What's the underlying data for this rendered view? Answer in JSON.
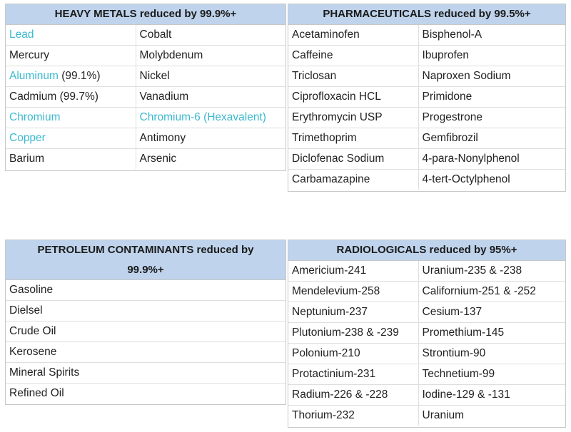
{
  "heavy_metals": {
    "title": "HEAVY METALS reduced by 99.9%+",
    "rows": [
      [
        {
          "name": "Lead",
          "suffix": "",
          "highlight": true
        },
        {
          "name": "Cobalt",
          "suffix": "",
          "highlight": false
        }
      ],
      [
        {
          "name": "Mercury",
          "suffix": "",
          "highlight": false
        },
        {
          "name": "Molybdenum",
          "suffix": "",
          "highlight": false
        }
      ],
      [
        {
          "name": "Aluminum",
          "suffix": " (99.1%)",
          "highlight": true
        },
        {
          "name": "Nickel",
          "suffix": "",
          "highlight": false
        }
      ],
      [
        {
          "name": "Cadmium (99.7%)",
          "suffix": "",
          "highlight": false
        },
        {
          "name": "Vanadium",
          "suffix": "",
          "highlight": false
        }
      ],
      [
        {
          "name": "Chromium",
          "suffix": "",
          "highlight": true
        },
        {
          "name": "Chromium-6 (Hexavalent)",
          "suffix": "",
          "highlight": true
        }
      ],
      [
        {
          "name": "Copper",
          "suffix": "",
          "highlight": true
        },
        {
          "name": "Antimony",
          "suffix": "",
          "highlight": false
        }
      ],
      [
        {
          "name": "Barium",
          "suffix": "",
          "highlight": false
        },
        {
          "name": "Arsenic",
          "suffix": "",
          "highlight": false
        }
      ]
    ]
  },
  "pharmaceuticals": {
    "title": "PHARMACEUTICALS reduced by 99.5%+",
    "rows": [
      [
        "Acetaminofen",
        "Bisphenol-A"
      ],
      [
        "Caffeine",
        "Ibuprofen"
      ],
      [
        "Triclosan",
        "Naproxen Sodium"
      ],
      [
        "Ciprofloxacin HCL",
        "Primidone"
      ],
      [
        "Erythromycin USP",
        "Progestrone"
      ],
      [
        "Trimethoprim",
        "Gemfibrozil"
      ],
      [
        "Diclofenac Sodium",
        "4-para-Nonylphenol"
      ],
      [
        "Carbamazapine",
        "4-tert-Octylphenol"
      ]
    ]
  },
  "petroleum": {
    "title_line1": "PETROLEUM CONTAMINANTS reduced by",
    "title_line2": "99.9%+",
    "rows": [
      "Gasoline",
      "Dielsel",
      "Crude Oil",
      "Kerosene",
      "Mineral Spirits",
      "Refined Oil"
    ]
  },
  "radiologicals": {
    "title": "RADIOLOGICALS reduced by 95%+",
    "rows": [
      [
        "Americium-241",
        "Uranium-235 & -238"
      ],
      [
        "Mendelevium-258",
        "Californium-251 & -252"
      ],
      [
        "Neptunium-237",
        "Cesium-137"
      ],
      [
        "Plutonium-238 & -239",
        "Promethium-145"
      ],
      [
        "Polonium-210",
        "Strontium-90"
      ],
      [
        "Protactinium-231",
        "Technetium-99"
      ],
      [
        "Radium-226 & -228",
        "Iodine-129 & -131"
      ],
      [
        "Thorium-232",
        "Uranium"
      ]
    ]
  },
  "colors": {
    "header_bg": "#bfd4ec",
    "highlight_text": "#3bb9cf"
  }
}
